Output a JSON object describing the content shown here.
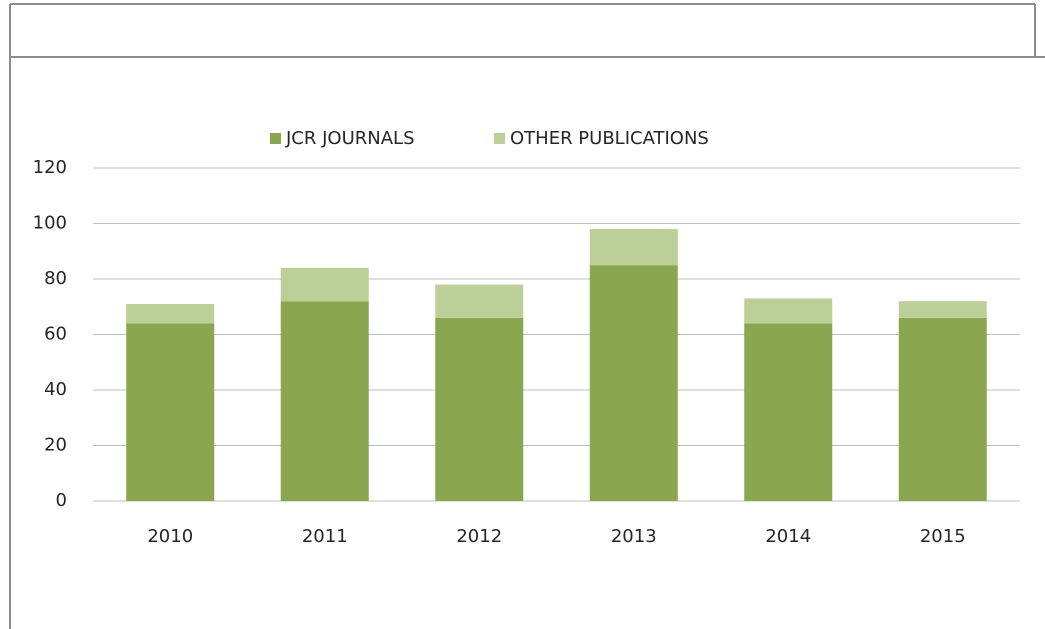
{
  "chart_data": {
    "type": "stacked_bar",
    "categories": [
      "2010",
      "2011",
      "2012",
      "2013",
      "2014",
      "2015"
    ],
    "series": [
      {
        "name": "JCR JOURNALS",
        "color": "#8aa64f",
        "values": [
          64,
          72,
          66,
          85,
          64,
          66
        ]
      },
      {
        "name": "OTHER PUBLICATIONS",
        "color": "#bccf98",
        "values": [
          7,
          12,
          12,
          13,
          9,
          6
        ]
      }
    ],
    "ylim": [
      0,
      120
    ],
    "yticks": [
      0,
      20,
      40,
      60,
      80,
      100,
      120
    ],
    "grid": true,
    "legend": "top"
  }
}
